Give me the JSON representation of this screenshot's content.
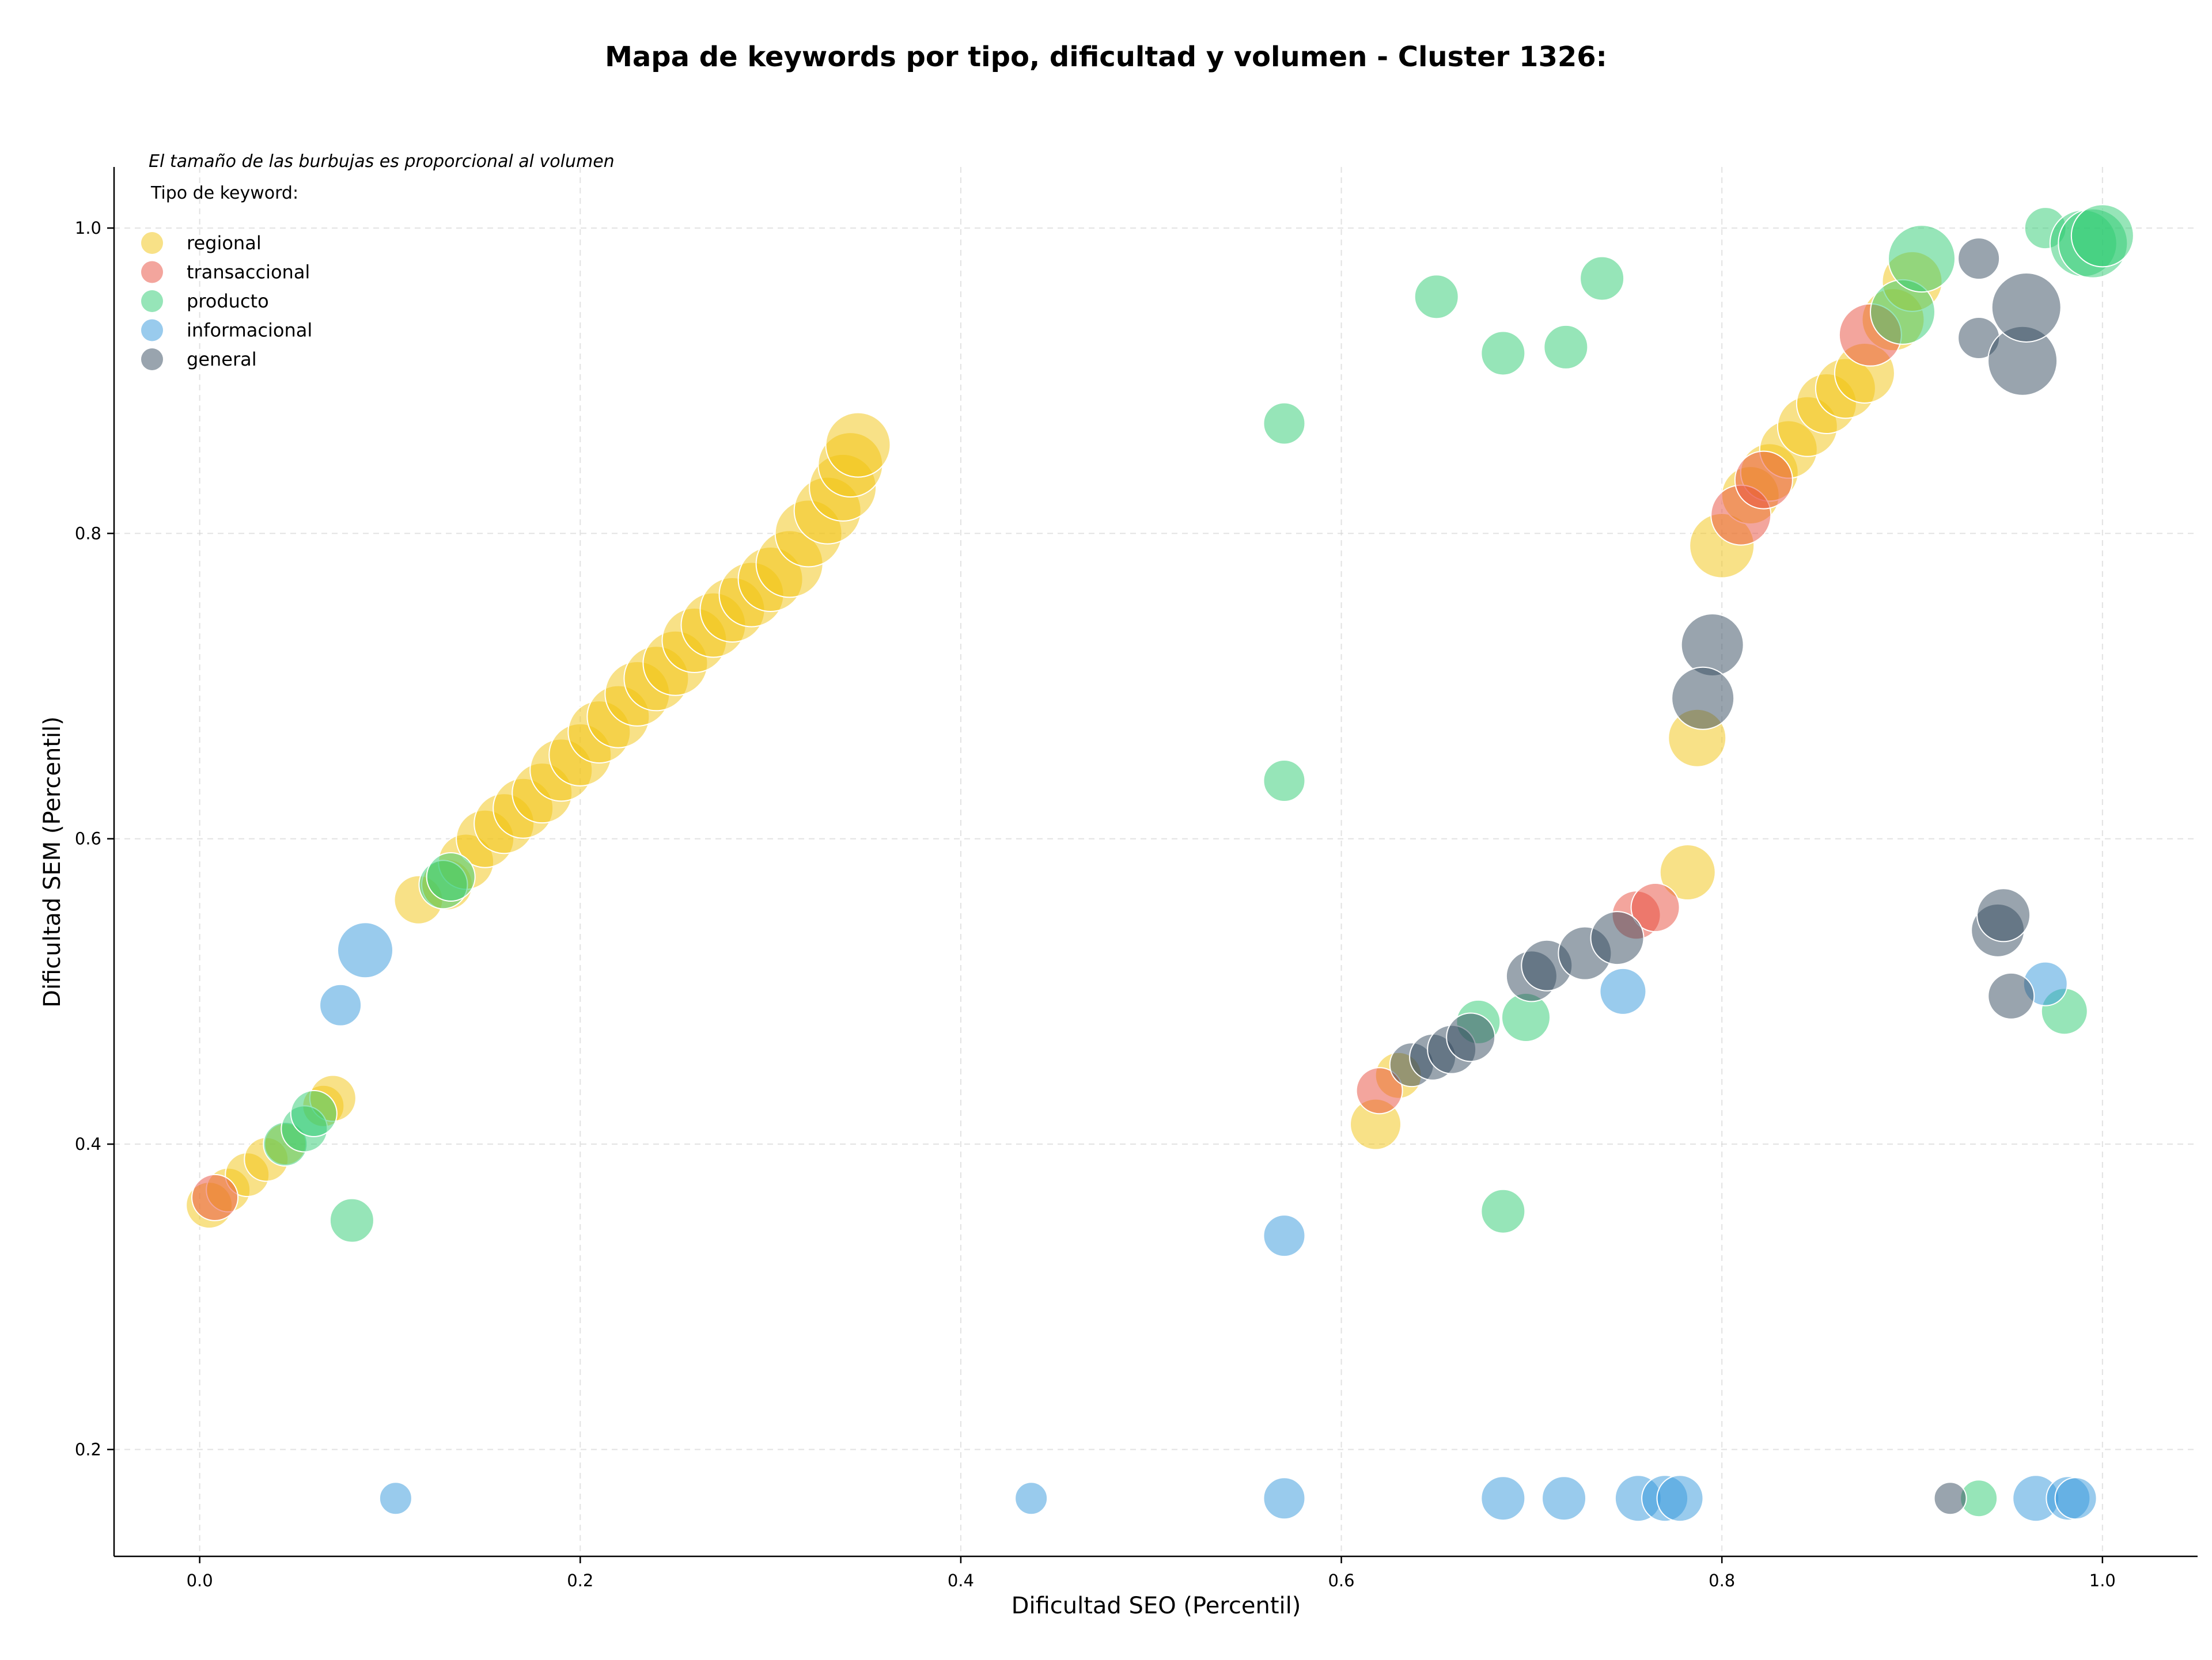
{
  "chart_data": {
    "type": "scatter",
    "title": "Mapa de keywords por tipo, dificultad y volumen - Cluster 1326:",
    "xlabel": "Dificultad SEO (Percentil)",
    "ylabel": "Dificultad SEM (Percentil)",
    "annotation": "El tamaño de las burbujas es proporcional al volumen",
    "xlim": [
      -0.045,
      1.05
    ],
    "ylim": [
      0.13,
      1.04
    ],
    "xticks": [
      "0.0",
      "0.2",
      "0.4",
      "0.6",
      "0.8",
      "1.0"
    ],
    "yticks": [
      "0.2",
      "0.4",
      "0.6",
      "0.8",
      "1.0"
    ],
    "grid": true,
    "legend_title": "Tipo de keyword:",
    "legend_position": "top-left",
    "series": [
      {
        "name": "regional",
        "color": "#f1c40f",
        "points": [
          {
            "x": 0.005,
            "y": 0.36,
            "s": 40
          },
          {
            "x": 0.015,
            "y": 0.37,
            "s": 38
          },
          {
            "x": 0.025,
            "y": 0.38,
            "s": 38
          },
          {
            "x": 0.035,
            "y": 0.39,
            "s": 38
          },
          {
            "x": 0.045,
            "y": 0.4,
            "s": 36
          },
          {
            "x": 0.065,
            "y": 0.425,
            "s": 36
          },
          {
            "x": 0.07,
            "y": 0.43,
            "s": 40
          },
          {
            "x": 0.115,
            "y": 0.56,
            "s": 42
          },
          {
            "x": 0.13,
            "y": 0.57,
            "s": 44
          },
          {
            "x": 0.14,
            "y": 0.585,
            "s": 48
          },
          {
            "x": 0.15,
            "y": 0.6,
            "s": 50
          },
          {
            "x": 0.16,
            "y": 0.61,
            "s": 52
          },
          {
            "x": 0.17,
            "y": 0.62,
            "s": 52
          },
          {
            "x": 0.18,
            "y": 0.63,
            "s": 52
          },
          {
            "x": 0.19,
            "y": 0.645,
            "s": 54
          },
          {
            "x": 0.2,
            "y": 0.655,
            "s": 54
          },
          {
            "x": 0.21,
            "y": 0.67,
            "s": 54
          },
          {
            "x": 0.22,
            "y": 0.68,
            "s": 54
          },
          {
            "x": 0.23,
            "y": 0.695,
            "s": 56
          },
          {
            "x": 0.24,
            "y": 0.705,
            "s": 56
          },
          {
            "x": 0.25,
            "y": 0.715,
            "s": 56
          },
          {
            "x": 0.26,
            "y": 0.73,
            "s": 56
          },
          {
            "x": 0.27,
            "y": 0.74,
            "s": 56
          },
          {
            "x": 0.28,
            "y": 0.75,
            "s": 56
          },
          {
            "x": 0.29,
            "y": 0.76,
            "s": 56
          },
          {
            "x": 0.3,
            "y": 0.77,
            "s": 56
          },
          {
            "x": 0.31,
            "y": 0.78,
            "s": 58
          },
          {
            "x": 0.32,
            "y": 0.8,
            "s": 58
          },
          {
            "x": 0.33,
            "y": 0.815,
            "s": 58
          },
          {
            "x": 0.338,
            "y": 0.83,
            "s": 58
          },
          {
            "x": 0.342,
            "y": 0.845,
            "s": 56
          },
          {
            "x": 0.346,
            "y": 0.858,
            "s": 56
          },
          {
            "x": 0.618,
            "y": 0.413,
            "s": 44
          },
          {
            "x": 0.63,
            "y": 0.445,
            "s": 40
          },
          {
            "x": 0.782,
            "y": 0.578,
            "s": 48
          },
          {
            "x": 0.787,
            "y": 0.666,
            "s": 50
          },
          {
            "x": 0.8,
            "y": 0.792,
            "s": 56
          },
          {
            "x": 0.815,
            "y": 0.825,
            "s": 50
          },
          {
            "x": 0.825,
            "y": 0.84,
            "s": 50
          },
          {
            "x": 0.835,
            "y": 0.855,
            "s": 50
          },
          {
            "x": 0.845,
            "y": 0.87,
            "s": 52
          },
          {
            "x": 0.855,
            "y": 0.885,
            "s": 52
          },
          {
            "x": 0.865,
            "y": 0.895,
            "s": 52
          },
          {
            "x": 0.875,
            "y": 0.905,
            "s": 52
          },
          {
            "x": 0.89,
            "y": 0.94,
            "s": 54
          },
          {
            "x": 0.9,
            "y": 0.965,
            "s": 52
          }
        ]
      },
      {
        "name": "transaccional",
        "color": "#e74c3c",
        "points": [
          {
            "x": 0.008,
            "y": 0.365,
            "s": 40
          },
          {
            "x": 0.62,
            "y": 0.435,
            "s": 40
          },
          {
            "x": 0.755,
            "y": 0.55,
            "s": 42
          },
          {
            "x": 0.765,
            "y": 0.555,
            "s": 42
          },
          {
            "x": 0.81,
            "y": 0.812,
            "s": 52
          },
          {
            "x": 0.822,
            "y": 0.835,
            "s": 50
          },
          {
            "x": 0.878,
            "y": 0.93,
            "s": 54
          }
        ]
      },
      {
        "name": "producto",
        "color": "#2ecc71",
        "points": [
          {
            "x": 0.045,
            "y": 0.4,
            "s": 38
          },
          {
            "x": 0.055,
            "y": 0.41,
            "s": 40
          },
          {
            "x": 0.06,
            "y": 0.42,
            "s": 40
          },
          {
            "x": 0.08,
            "y": 0.35,
            "s": 38
          },
          {
            "x": 0.128,
            "y": 0.57,
            "s": 42
          },
          {
            "x": 0.132,
            "y": 0.575,
            "s": 42
          },
          {
            "x": 0.57,
            "y": 0.872,
            "s": 36
          },
          {
            "x": 0.57,
            "y": 0.638,
            "s": 36
          },
          {
            "x": 0.65,
            "y": 0.955,
            "s": 38
          },
          {
            "x": 0.685,
            "y": 0.918,
            "s": 38
          },
          {
            "x": 0.718,
            "y": 0.922,
            "s": 38
          },
          {
            "x": 0.737,
            "y": 0.967,
            "s": 38
          },
          {
            "x": 0.672,
            "y": 0.48,
            "s": 38
          },
          {
            "x": 0.697,
            "y": 0.483,
            "s": 42
          },
          {
            "x": 0.685,
            "y": 0.356,
            "s": 38
          },
          {
            "x": 0.935,
            "y": 0.168,
            "s": 32
          },
          {
            "x": 0.895,
            "y": 0.945,
            "s": 56
          },
          {
            "x": 0.905,
            "y": 0.98,
            "s": 58
          },
          {
            "x": 0.97,
            "y": 1.0,
            "s": 36
          },
          {
            "x": 0.99,
            "y": 0.99,
            "s": 58
          },
          {
            "x": 0.995,
            "y": 0.99,
            "s": 60
          },
          {
            "x": 1.0,
            "y": 0.995,
            "s": 54
          },
          {
            "x": 0.98,
            "y": 0.487,
            "s": 40
          }
        ]
      },
      {
        "name": "informacional",
        "color": "#3498db",
        "points": [
          {
            "x": 0.074,
            "y": 0.491,
            "s": 36
          },
          {
            "x": 0.087,
            "y": 0.527,
            "s": 48
          },
          {
            "x": 0.103,
            "y": 0.168,
            "s": 28
          },
          {
            "x": 0.437,
            "y": 0.168,
            "s": 28
          },
          {
            "x": 0.57,
            "y": 0.34,
            "s": 36
          },
          {
            "x": 0.57,
            "y": 0.168,
            "s": 36
          },
          {
            "x": 0.685,
            "y": 0.168,
            "s": 38
          },
          {
            "x": 0.717,
            "y": 0.168,
            "s": 38
          },
          {
            "x": 0.748,
            "y": 0.5,
            "s": 40
          },
          {
            "x": 0.756,
            "y": 0.168,
            "s": 40
          },
          {
            "x": 0.77,
            "y": 0.168,
            "s": 40
          },
          {
            "x": 0.778,
            "y": 0.168,
            "s": 40
          },
          {
            "x": 0.965,
            "y": 0.168,
            "s": 40
          },
          {
            "x": 0.982,
            "y": 0.168,
            "s": 38
          },
          {
            "x": 0.986,
            "y": 0.168,
            "s": 36
          },
          {
            "x": 0.97,
            "y": 0.505,
            "s": 38
          }
        ]
      },
      {
        "name": "general",
        "color": "#34495e",
        "points": [
          {
            "x": 0.637,
            "y": 0.452,
            "s": 38
          },
          {
            "x": 0.648,
            "y": 0.457,
            "s": 40
          },
          {
            "x": 0.658,
            "y": 0.462,
            "s": 42
          },
          {
            "x": 0.668,
            "y": 0.47,
            "s": 42
          },
          {
            "x": 0.7,
            "y": 0.51,
            "s": 44
          },
          {
            "x": 0.708,
            "y": 0.517,
            "s": 44
          },
          {
            "x": 0.728,
            "y": 0.525,
            "s": 46
          },
          {
            "x": 0.745,
            "y": 0.535,
            "s": 46
          },
          {
            "x": 0.795,
            "y": 0.727,
            "s": 54
          },
          {
            "x": 0.79,
            "y": 0.692,
            "s": 54
          },
          {
            "x": 0.92,
            "y": 0.168,
            "s": 28
          },
          {
            "x": 0.935,
            "y": 0.98,
            "s": 36
          },
          {
            "x": 0.935,
            "y": 0.928,
            "s": 36
          },
          {
            "x": 0.945,
            "y": 0.54,
            "s": 46
          },
          {
            "x": 0.948,
            "y": 0.55,
            "s": 46
          },
          {
            "x": 0.952,
            "y": 0.497,
            "s": 40
          },
          {
            "x": 0.958,
            "y": 0.913,
            "s": 60
          },
          {
            "x": 0.96,
            "y": 0.948,
            "s": 60
          }
        ]
      }
    ]
  }
}
